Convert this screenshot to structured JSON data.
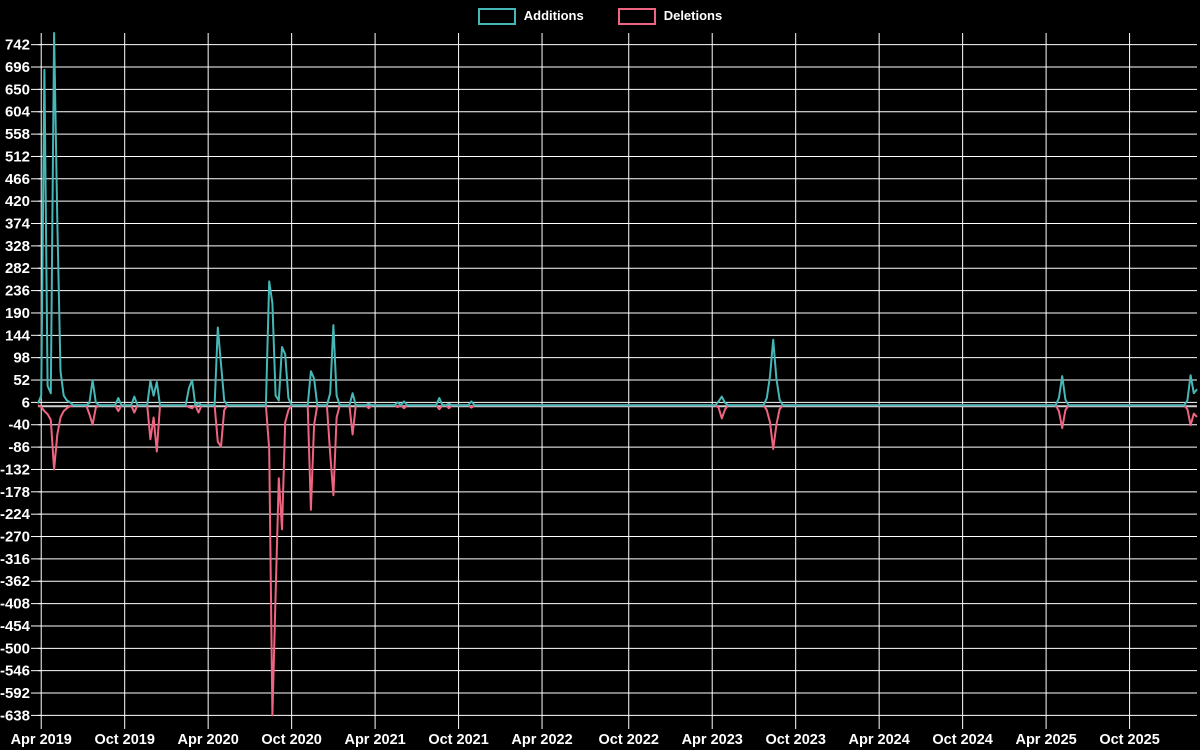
{
  "legend": {
    "additions_label": "Additions",
    "deletions_label": "Deletions"
  },
  "colors": {
    "background": "#000000",
    "grid": "#ffffff",
    "text": "#ffffff",
    "additions": "#46b7b7",
    "deletions": "#ef6480",
    "zero_line": "#cfcfcf"
  },
  "chart_data": {
    "type": "line",
    "title": "",
    "xlabel": "",
    "ylabel": "",
    "grid": true,
    "legend_position": "top",
    "x_axis": {
      "unit": "week",
      "tick_labels": [
        "Apr 2019",
        "Oct 2019",
        "Apr 2020",
        "Oct 2020",
        "Apr 2021",
        "Oct 2021",
        "Apr 2022",
        "Oct 2022",
        "Apr 2023",
        "Oct 2023",
        "Apr 2024",
        "Oct 2024",
        "Apr 2025",
        "Oct 2025"
      ],
      "tick_weeks": [
        1,
        27,
        53,
        79,
        105,
        131,
        157,
        184,
        210,
        236,
        262,
        288,
        314,
        340
      ]
    },
    "y_axis": {
      "ticks": [
        742,
        696,
        650,
        604,
        558,
        512,
        466,
        420,
        374,
        328,
        282,
        236,
        190,
        144,
        98,
        52,
        6,
        -40,
        -86,
        -132,
        -178,
        -224,
        -270,
        -316,
        -362,
        -408,
        -454,
        -500,
        -546,
        -592,
        -638
      ],
      "interval": 46,
      "min": -666,
      "max": 766
    },
    "weeks_total": 362,
    "default_value": 0,
    "series": [
      {
        "name": "Additions",
        "color": "#46b7b7",
        "points": {
          "0": 4,
          "1": 20,
          "2": 690,
          "3": 40,
          "4": 25,
          "5": 766,
          "6": 380,
          "7": 70,
          "8": 20,
          "9": 10,
          "10": 6,
          "16": 5,
          "17": 52,
          "18": 6,
          "25": 15,
          "30": 18,
          "35": 50,
          "36": 20,
          "37": 48,
          "47": 35,
          "48": 52,
          "50": 5,
          "56": 160,
          "57": 85,
          "58": 10,
          "72": 255,
          "73": 210,
          "74": 20,
          "75": 10,
          "76": 120,
          "77": 105,
          "78": 15,
          "85": 70,
          "86": 55,
          "91": 25,
          "92": 165,
          "93": 20,
          "98": 25,
          "103": 3,
          "112": 6,
          "114": 8,
          "125": 15,
          "128": 3,
          "135": 8,
          "212": 8,
          "213": 18,
          "214": 5,
          "227": 15,
          "228": 60,
          "229": 135,
          "230": 55,
          "231": 12,
          "318": 15,
          "319": 60,
          "320": 12,
          "358": 10,
          "359": 62,
          "360": 25,
          "361": 33
        }
      },
      {
        "name": "Deletions",
        "color": "#ef6480",
        "points": {
          "1": -3,
          "2": -12,
          "3": -18,
          "4": -30,
          "5": -132,
          "6": -60,
          "7": -25,
          "8": -12,
          "9": -6,
          "10": -2,
          "16": -18,
          "17": -40,
          "18": -5,
          "25": -12,
          "30": -15,
          "35": -70,
          "36": -25,
          "37": -95,
          "47": -4,
          "48": -6,
          "50": -15,
          "56": -75,
          "57": -85,
          "58": -10,
          "72": -90,
          "73": -638,
          "74": -390,
          "75": -150,
          "76": -255,
          "77": -35,
          "78": -10,
          "85": -215,
          "86": -40,
          "91": -100,
          "92": -185,
          "93": -25,
          "98": -60,
          "103": -6,
          "112": -4,
          "114": -6,
          "125": -8,
          "128": -6,
          "135": -5,
          "212": -5,
          "213": -27,
          "214": -8,
          "227": -10,
          "228": -35,
          "229": -90,
          "230": -40,
          "231": -8,
          "318": -12,
          "319": -47,
          "320": -10,
          "358": -8,
          "359": -41,
          "360": -17,
          "361": -24
        }
      }
    ]
  }
}
